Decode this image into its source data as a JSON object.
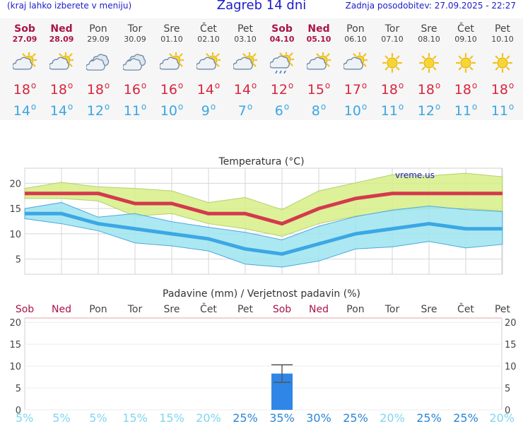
{
  "header": {
    "menu_hint": "(kraj lahko izberete v meniju)",
    "title": "Zagreb 14 dni",
    "updated": "Zadnja posodobitev: 27.09.2025 - 22:27"
  },
  "days": [
    {
      "name": "Sob",
      "date": "27.09",
      "weekend": true,
      "icon": "partly-cloudy-icon",
      "max": "18",
      "min": "14"
    },
    {
      "name": "Ned",
      "date": "28.09",
      "weekend": true,
      "icon": "partly-cloudy-icon",
      "max": "18",
      "min": "14"
    },
    {
      "name": "Pon",
      "date": "29.09",
      "weekend": false,
      "icon": "cloudy-icon",
      "max": "18",
      "min": "12"
    },
    {
      "name": "Tor",
      "date": "30.09",
      "weekend": false,
      "icon": "cloudy-icon",
      "max": "16",
      "min": "11"
    },
    {
      "name": "Sre",
      "date": "01.10",
      "weekend": false,
      "icon": "partly-cloudy-icon",
      "max": "16",
      "min": "10"
    },
    {
      "name": "Čet",
      "date": "02.10",
      "weekend": false,
      "icon": "partly-cloudy-icon",
      "max": "14",
      "min": "9"
    },
    {
      "name": "Pet",
      "date": "03.10",
      "weekend": false,
      "icon": "partly-cloudy-icon",
      "max": "14",
      "min": "7"
    },
    {
      "name": "Sob",
      "date": "04.10",
      "weekend": true,
      "icon": "sun-rain-icon",
      "max": "12",
      "min": "6"
    },
    {
      "name": "Ned",
      "date": "05.10",
      "weekend": true,
      "icon": "partly-cloudy-icon",
      "max": "15",
      "min": "8"
    },
    {
      "name": "Pon",
      "date": "06.10",
      "weekend": false,
      "icon": "partly-cloudy-icon",
      "max": "17",
      "min": "10"
    },
    {
      "name": "Tor",
      "date": "07.10",
      "weekend": false,
      "icon": "sun-icon",
      "max": "18",
      "min": "11"
    },
    {
      "name": "Sre",
      "date": "08.10",
      "weekend": false,
      "icon": "sun-icon",
      "max": "18",
      "min": "12"
    },
    {
      "name": "Čet",
      "date": "09.10",
      "weekend": false,
      "icon": "sun-icon",
      "max": "18",
      "min": "11"
    },
    {
      "name": "Pet",
      "date": "10.10",
      "weekend": false,
      "icon": "sun-icon",
      "max": "18",
      "min": "11"
    }
  ],
  "chart_data": [
    {
      "type": "line",
      "title": "Temperatura (°C)",
      "watermark": "vreme.us",
      "ylim": [
        2,
        23
      ],
      "yticks": [
        5,
        10,
        15,
        20
      ],
      "grid": true,
      "series": [
        {
          "role": "max",
          "color": "#d43a4c",
          "values": [
            18,
            18,
            18,
            16,
            16,
            14,
            14,
            12,
            15,
            17,
            18,
            18,
            18,
            18
          ]
        },
        {
          "role": "max-band-upper",
          "color": "#d6ee86",
          "values": [
            19,
            20.2,
            19.3,
            19,
            18.5,
            16.2,
            17.2,
            14.8,
            18.5,
            20.1,
            21.7,
            21.5,
            22,
            21.3
          ]
        },
        {
          "role": "max-band-lower",
          "color": "#d6ee86",
          "values": [
            17,
            17,
            16.5,
            13.5,
            14,
            12,
            11,
            9.5,
            12,
            13.5,
            14.5,
            15,
            15,
            14.5
          ]
        },
        {
          "role": "min",
          "color": "#3ca7e4",
          "values": [
            14,
            14,
            12,
            11,
            10,
            9,
            7,
            6,
            8,
            10,
            11,
            12,
            11,
            11
          ]
        },
        {
          "role": "min-band-upper",
          "color": "#9ee4f0",
          "values": [
            15,
            16.2,
            13.3,
            14,
            12.4,
            11.3,
            10.3,
            8.8,
            11.5,
            13.4,
            14.7,
            15.5,
            14.8,
            14.4
          ]
        },
        {
          "role": "min-band-lower",
          "color": "#9ee4f0",
          "values": [
            13,
            12,
            10.6,
            8.2,
            7.6,
            6.6,
            4,
            3.4,
            4.6,
            7,
            7.4,
            8.5,
            7.2,
            7.9
          ]
        }
      ]
    },
    {
      "type": "bar",
      "title": "Padavine (mm) / Verjetnost padavin (%)",
      "categories": [
        "Sob",
        "Ned",
        "Pon",
        "Tor",
        "Sre",
        "Čet",
        "Pet",
        "Sob",
        "Ned",
        "Pon",
        "Tor",
        "Sre",
        "Čet",
        "Pet"
      ],
      "weekend": [
        true,
        true,
        false,
        false,
        false,
        false,
        false,
        true,
        true,
        false,
        false,
        false,
        false,
        false
      ],
      "ylim": [
        0,
        21
      ],
      "yticks": [
        0,
        5,
        10,
        15,
        20
      ],
      "bar_color": "#2f86e6",
      "values": [
        0,
        0,
        0,
        0,
        0,
        0,
        0,
        8.3,
        0,
        0,
        0,
        0,
        0,
        0
      ],
      "error_high": [
        null,
        null,
        null,
        null,
        null,
        null,
        null,
        10.3,
        null,
        null,
        null,
        null,
        null,
        null
      ],
      "error_low": [
        null,
        null,
        null,
        null,
        null,
        null,
        null,
        6.3,
        null,
        null,
        null,
        null,
        null,
        null
      ],
      "probability": [
        "5%",
        "5%",
        "5%",
        "15%",
        "15%",
        "20%",
        "25%",
        "35%",
        "30%",
        "25%",
        "20%",
        "25%",
        "25%",
        "20%"
      ]
    }
  ]
}
